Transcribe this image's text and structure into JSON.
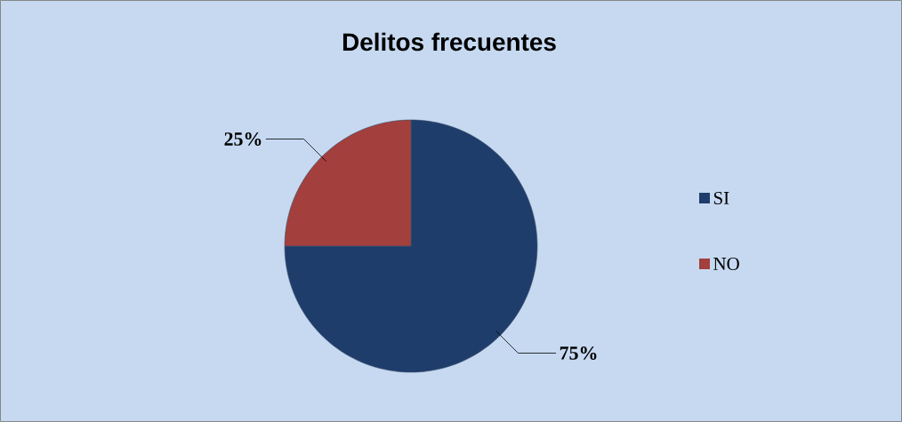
{
  "chart_data": {
    "type": "pie",
    "title": "Delitos frecuentes",
    "categories": [
      "SI",
      "NO"
    ],
    "values": [
      75,
      25
    ],
    "colors": [
      "#1f3d6b",
      "#a33f3c"
    ],
    "value_labels": [
      "75%",
      "25%"
    ],
    "legend": "right"
  }
}
